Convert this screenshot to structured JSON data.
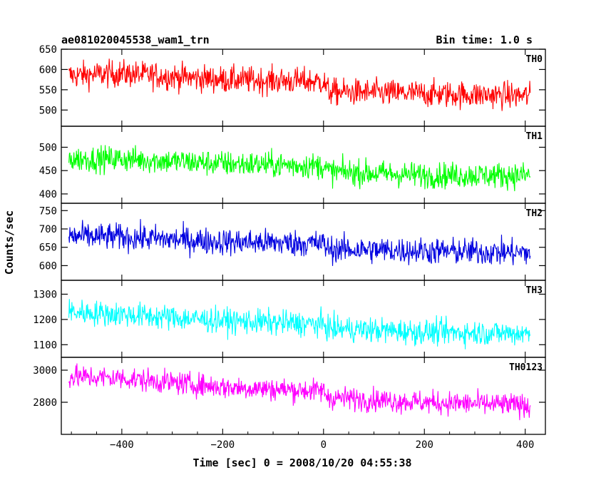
{
  "chart_data": {
    "type": "line",
    "title_left": "ae081020045538_wam1_trn",
    "title_right": "Bin time: 1.0 s",
    "xlabel": "Time [sec] 0 = 2008/10/20 04:55:38",
    "ylabel": "Counts/sec",
    "xlim": [
      -520,
      440
    ],
    "x_data_range": [
      -505,
      410
    ],
    "x_ticks": [
      -400,
      -200,
      0,
      200,
      400
    ],
    "panels": [
      {
        "name": "TH0",
        "color": "#ff0000",
        "ylim": [
          460,
          650
        ],
        "y_ticks": [
          500,
          550,
          600,
          650
        ],
        "trend": [
          [
            -505,
            585
          ],
          [
            -400,
            590
          ],
          [
            -200,
            575
          ],
          [
            0,
            570
          ],
          [
            10,
            545
          ],
          [
            200,
            540
          ],
          [
            410,
            535
          ]
        ],
        "noise": 30
      },
      {
        "name": "TH1",
        "color": "#00ff00",
        "ylim": [
          380,
          545
        ],
        "y_ticks": [
          400,
          450,
          500
        ],
        "trend": [
          [
            -505,
            475
          ],
          [
            -400,
            475
          ],
          [
            -200,
            465
          ],
          [
            0,
            460
          ],
          [
            10,
            448
          ],
          [
            200,
            440
          ],
          [
            410,
            440
          ]
        ],
        "noise": 25
      },
      {
        "name": "TH2",
        "color": "#0000e0",
        "ylim": [
          560,
          770
        ],
        "y_ticks": [
          600,
          650,
          700,
          750
        ],
        "trend": [
          [
            -505,
            680
          ],
          [
            -400,
            678
          ],
          [
            -200,
            665
          ],
          [
            0,
            660
          ],
          [
            10,
            645
          ],
          [
            200,
            640
          ],
          [
            410,
            635
          ]
        ],
        "noise": 33
      },
      {
        "name": "TH3",
        "color": "#00ffff",
        "ylim": [
          1050,
          1355
        ],
        "y_ticks": [
          1100,
          1200,
          1300
        ],
        "trend": [
          [
            -505,
            1230
          ],
          [
            -400,
            1220
          ],
          [
            -200,
            1195
          ],
          [
            0,
            1180
          ],
          [
            10,
            1165
          ],
          [
            200,
            1150
          ],
          [
            410,
            1145
          ]
        ],
        "noise": 45
      },
      {
        "name": "TH0123",
        "color": "#ff00ff",
        "ylim": [
          2600,
          3080
        ],
        "y_ticks": [
          2800,
          3000
        ],
        "trend": [
          [
            -505,
            2960
          ],
          [
            -400,
            2950
          ],
          [
            -200,
            2895
          ],
          [
            0,
            2870
          ],
          [
            10,
            2830
          ],
          [
            200,
            2800
          ],
          [
            410,
            2780
          ]
        ],
        "noise": 65
      }
    ]
  }
}
